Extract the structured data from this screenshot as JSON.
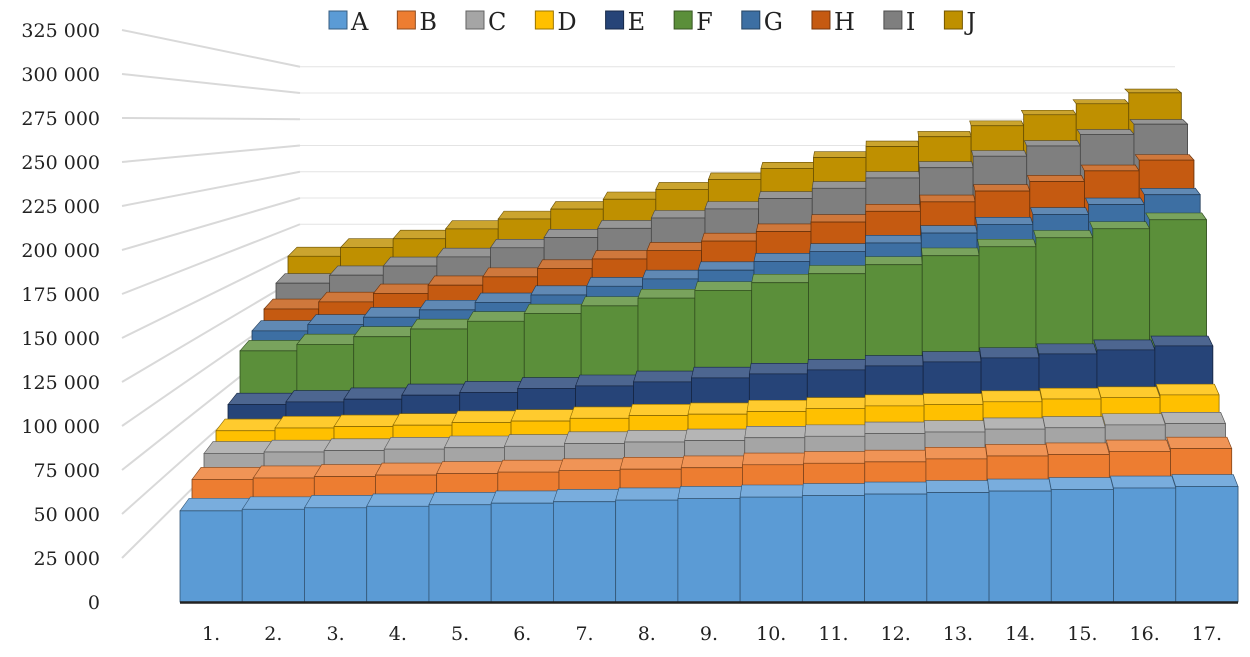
{
  "chart_data": {
    "type": "bar",
    "subtype": "3d-column",
    "title": "",
    "xlabel": "",
    "ylabel": "",
    "ylim": [
      0,
      325000
    ],
    "y_ticks": [
      0,
      25000,
      50000,
      75000,
      100000,
      125000,
      150000,
      175000,
      200000,
      225000,
      250000,
      275000,
      300000,
      325000
    ],
    "y_tick_labels": [
      "0",
      "25 000",
      "50 000",
      "75 000",
      "100 000",
      "125 000",
      "150 000",
      "175 000",
      "200 000",
      "225 000",
      "250 000",
      "275 000",
      "300 000",
      "325 000"
    ],
    "grid": true,
    "legend_position": "top",
    "categories": [
      "1.",
      "2.",
      "3.",
      "4.",
      "5.",
      "6.",
      "7.",
      "8.",
      "9.",
      "10.",
      "11.",
      "12.",
      "13.",
      "14.",
      "15.",
      "16.",
      "17."
    ],
    "series": [
      {
        "name": "A",
        "color": "#5b9bd5",
        "values": [
          60000,
          61000,
          62000,
          63000,
          64000,
          65000,
          66000,
          67000,
          68000,
          69000,
          70000,
          71000,
          72000,
          73000,
          74000,
          75000,
          76000
        ]
      },
      {
        "name": "B",
        "color": "#ed7d31",
        "values": [
          70000,
          71000,
          72000,
          73000,
          74000,
          75000,
          76000,
          77000,
          78000,
          80000,
          81000,
          82000,
          84000,
          86000,
          87000,
          89000,
          91000
        ]
      },
      {
        "name": "C",
        "color": "#a5a5a5",
        "values": [
          77000,
          78000,
          79000,
          80000,
          81000,
          82000,
          84000,
          85000,
          86000,
          88000,
          89000,
          91000,
          92000,
          94000,
          95000,
          97000,
          98000
        ]
      },
      {
        "name": "D",
        "color": "#ffc000",
        "values": [
          82000,
          84000,
          85000,
          86000,
          88000,
          89000,
          91000,
          93000,
          94000,
          96000,
          98000,
          100000,
          101000,
          103000,
          105000,
          106000,
          108000
        ]
      },
      {
        "name": "E",
        "color": "#264478",
        "values": [
          90000,
          92000,
          94000,
          97000,
          99000,
          102000,
          104000,
          107000,
          110000,
          113000,
          116000,
          119000,
          122000,
          125000,
          128000,
          131000,
          134000
        ]
      },
      {
        "name": "F",
        "color": "#5b8f3a",
        "values": [
          120000,
          125000,
          131000,
          137000,
          143000,
          149000,
          155000,
          161000,
          167000,
          173000,
          180000,
          187000,
          194000,
          201000,
          208000,
          215000,
          222000
        ]
      },
      {
        "name": "G",
        "color": "#3d6fa3",
        "values": [
          125000,
          130000,
          136000,
          142000,
          148000,
          154000,
          161000,
          167000,
          174000,
          181000,
          189000,
          196000,
          204000,
          211000,
          219000,
          227000,
          235000
        ]
      },
      {
        "name": "H",
        "color": "#c55a11",
        "values": [
          132000,
          138000,
          145000,
          152000,
          159000,
          166000,
          174000,
          181000,
          189000,
          197000,
          205000,
          214000,
          222000,
          231000,
          239000,
          248000,
          257000
        ]
      },
      {
        "name": "I",
        "color": "#7f7f7f",
        "values": [
          143000,
          150000,
          158000,
          166000,
          174000,
          183000,
          191000,
          200000,
          208000,
          217000,
          226000,
          235000,
          244000,
          254000,
          263000,
          273000,
          282000
        ]
      },
      {
        "name": "J",
        "color": "#bf9000",
        "values": [
          156000,
          164000,
          172000,
          181000,
          190000,
          199000,
          208000,
          217000,
          226000,
          236000,
          246000,
          256000,
          265000,
          275000,
          285000,
          295000,
          305000
        ]
      }
    ]
  }
}
